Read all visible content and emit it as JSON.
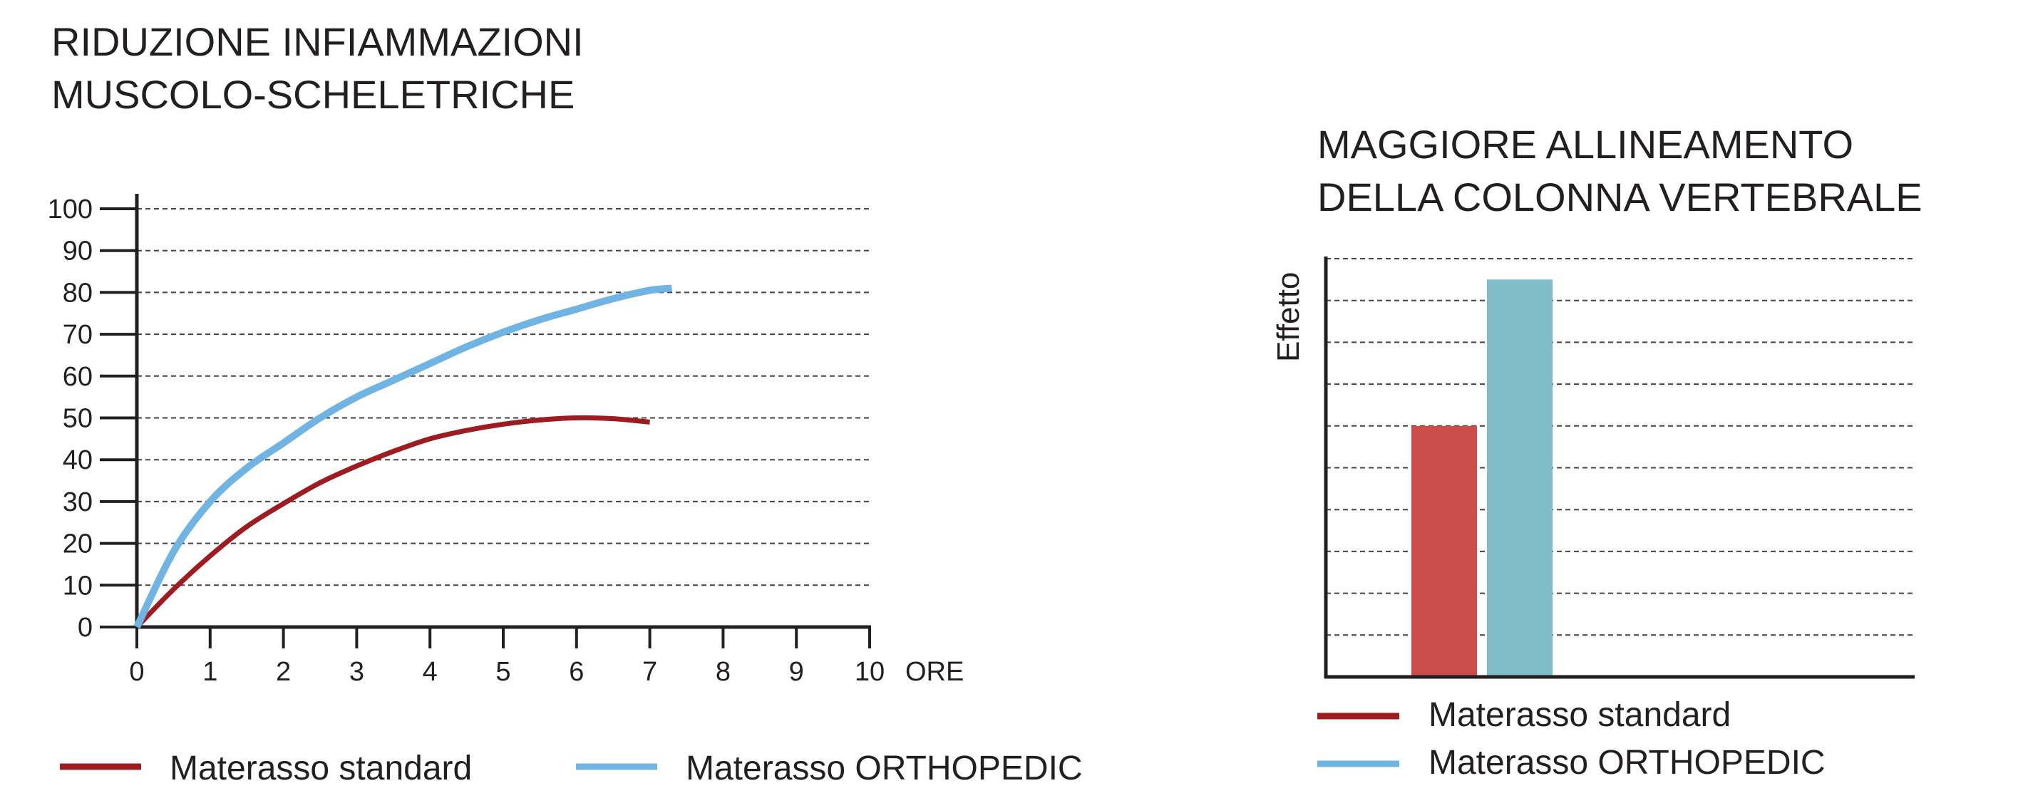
{
  "chart_data": [
    {
      "type": "line",
      "title": [
        "RIDUZIONE INFIAMMAZIONI",
        "MUSCOLO-SCHELETRICHE"
      ],
      "xlabel": "ORE",
      "ylabel": "",
      "xlim": [
        0,
        10
      ],
      "ylim": [
        0,
        100
      ],
      "x_ticks": [
        0,
        1,
        2,
        3,
        4,
        5,
        6,
        7,
        8,
        9,
        10
      ],
      "y_ticks": [
        0,
        10,
        20,
        30,
        40,
        50,
        60,
        70,
        80,
        90,
        100
      ],
      "grid": "horizontal-dashed",
      "legend_position": "bottom",
      "series": [
        {
          "name": "Materasso standard",
          "color": "#9e1b20",
          "x": [
            0,
            0.5,
            1,
            1.5,
            2,
            2.5,
            3,
            3.5,
            4,
            4.5,
            5,
            5.5,
            6,
            6.5,
            7
          ],
          "y": [
            0,
            9,
            17,
            24,
            29.5,
            34.5,
            38.5,
            42,
            45,
            47,
            48.5,
            49.5,
            50,
            49.8,
            49
          ]
        },
        {
          "name": "Materasso ORTHOPEDIC",
          "color": "#6fb4e3",
          "x": [
            0,
            0.5,
            1,
            1.5,
            2,
            2.5,
            3,
            3.5,
            4,
            4.5,
            5,
            5.5,
            6,
            6.5,
            7,
            7.3
          ],
          "y": [
            0,
            18,
            30,
            38,
            44,
            50,
            55,
            59,
            63,
            67,
            70.5,
            73.5,
            76,
            78.5,
            80.5,
            81
          ]
        }
      ]
    },
    {
      "type": "bar",
      "title": [
        "MAGGIORE ALLINEAMENTO",
        "DELLA COLONNA VERTEBRALE"
      ],
      "ylabel": "Effetto",
      "xlabel": "",
      "ylim": [
        0,
        10
      ],
      "grid": "horizontal-dashed",
      "legend_position": "bottom-left",
      "categories": [
        "Materasso standard",
        "Materasso ORTHOPEDIC"
      ],
      "values": [
        6,
        9.5
      ],
      "colors": [
        "#cc4b4b",
        "#7fbec9"
      ],
      "legend": [
        {
          "name": "Materasso standard",
          "color": "#9e1b20"
        },
        {
          "name": "Materasso ORTHOPEDIC",
          "color": "#6fb4e3"
        }
      ]
    }
  ]
}
